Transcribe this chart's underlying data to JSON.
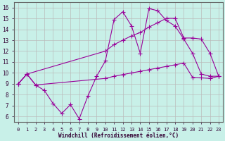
{
  "xlabel": "Windchill (Refroidissement éolien,°C)",
  "xlim": [
    -0.5,
    23.5
  ],
  "ylim": [
    5.5,
    16.5
  ],
  "xticks": [
    0,
    1,
    2,
    3,
    4,
    5,
    6,
    7,
    8,
    9,
    10,
    11,
    12,
    13,
    14,
    15,
    16,
    17,
    18,
    19,
    20,
    21,
    22,
    23
  ],
  "yticks": [
    6,
    7,
    8,
    9,
    10,
    11,
    12,
    13,
    14,
    15,
    16
  ],
  "bg_color": "#c8f0e8",
  "line_color": "#990099",
  "grid_color": "#bbbbbb",
  "line1_x": [
    0,
    1,
    2,
    3,
    4,
    5,
    6,
    7,
    8,
    9,
    10,
    11,
    12,
    13,
    14,
    15,
    16,
    17,
    18,
    19,
    20,
    21,
    22,
    23
  ],
  "line1_y": [
    9.0,
    9.9,
    8.9,
    8.4,
    7.2,
    6.3,
    7.1,
    5.8,
    7.9,
    9.7,
    11.1,
    14.9,
    15.6,
    14.3,
    11.8,
    15.9,
    15.7,
    14.8,
    14.3,
    13.1,
    11.8,
    9.9,
    9.7,
    9.7
  ],
  "line2_x": [
    0,
    1,
    10,
    11,
    12,
    13,
    14,
    15,
    16,
    17,
    18,
    19,
    20,
    21,
    22,
    23
  ],
  "line2_y": [
    9.0,
    9.9,
    12.0,
    12.6,
    13.0,
    13.4,
    13.7,
    14.2,
    14.6,
    15.0,
    15.0,
    13.2,
    13.2,
    13.1,
    11.8,
    9.7
  ],
  "line3_x": [
    0,
    1,
    2,
    10,
    11,
    12,
    13,
    14,
    15,
    16,
    17,
    18,
    19,
    20,
    21,
    22,
    23
  ],
  "line3_y": [
    9.0,
    9.9,
    8.9,
    9.5,
    9.7,
    9.85,
    10.0,
    10.15,
    10.3,
    10.45,
    10.6,
    10.75,
    10.9,
    9.6,
    9.55,
    9.5,
    9.7
  ]
}
